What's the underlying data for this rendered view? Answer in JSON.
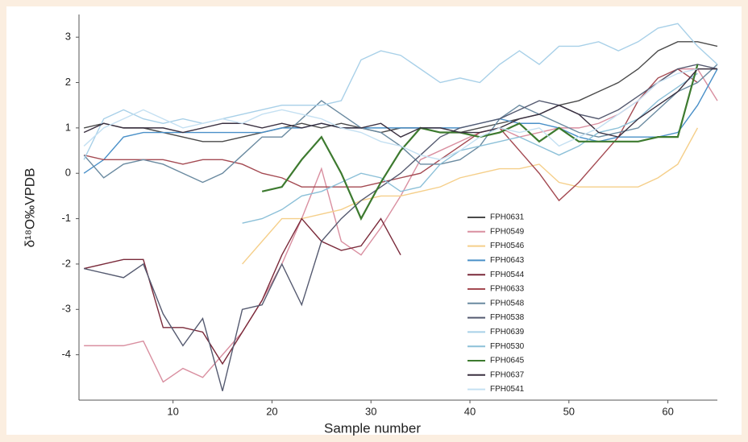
{
  "chart_data": {
    "type": "line",
    "x_label": "Sample number",
    "y_label": "δ¹⁸O‰VPDB",
    "xlim": [
      0.5,
      65
    ],
    "ylim": [
      -5,
      3.5
    ],
    "xticks": [
      10,
      20,
      30,
      40,
      50,
      60
    ],
    "yticks": [
      -4,
      -3,
      -2,
      -1,
      0,
      1,
      2,
      3
    ],
    "grid": false,
    "legend": "lower right",
    "x": [
      1,
      3,
      5,
      7,
      9,
      11,
      13,
      15,
      17,
      19,
      21,
      23,
      25,
      27,
      29,
      31,
      33,
      35,
      37,
      39,
      41,
      43,
      45,
      47,
      49,
      51,
      53,
      55,
      57,
      59,
      61,
      63,
      65
    ],
    "series": [
      {
        "name": "FPH0631",
        "color": "#4a4a4a",
        "values": [
          1.0,
          1.1,
          1.0,
          1.0,
          0.9,
          0.8,
          0.7,
          0.7,
          0.8,
          0.9,
          1.0,
          1.1,
          1.0,
          1.1,
          1.0,
          0.9,
          1.0,
          1.0,
          0.9,
          0.9,
          1.0,
          1.1,
          1.2,
          1.3,
          1.5,
          1.6,
          1.8,
          2.0,
          2.3,
          2.7,
          2.9,
          2.9,
          2.8
        ]
      },
      {
        "name": "FPH0549",
        "color": "#d98fa0",
        "values": [
          -3.8,
          -3.8,
          -3.8,
          -3.7,
          -4.6,
          -4.3,
          -4.5,
          -4.0,
          -3.5,
          -2.8,
          -2.0,
          -1.0,
          0.1,
          -1.5,
          -1.8,
          -1.2,
          -0.5,
          0.3,
          0.5,
          0.7,
          0.9,
          1.0,
          0.8,
          0.9,
          1.0,
          1.0,
          1.1,
          1.3,
          1.6,
          2.0,
          2.3,
          2.3,
          1.6
        ]
      },
      {
        "name": "FPH0546",
        "color": "#f5cf8a",
        "values": [
          null,
          null,
          null,
          null,
          null,
          null,
          null,
          null,
          -2.0,
          -1.5,
          -1.0,
          -1.0,
          -0.9,
          -0.8,
          -0.6,
          -0.5,
          -0.5,
          -0.4,
          -0.3,
          -0.1,
          0.0,
          0.1,
          0.1,
          0.2,
          -0.2,
          -0.3,
          -0.3,
          -0.3,
          -0.3,
          -0.1,
          0.2,
          1.0,
          null
        ]
      },
      {
        "name": "FPH0643",
        "color": "#4a90c8",
        "values": [
          0.0,
          0.3,
          0.8,
          0.9,
          0.9,
          0.9,
          0.9,
          0.9,
          0.9,
          0.9,
          1.0,
          1.0,
          1.1,
          1.0,
          1.0,
          1.0,
          1.0,
          1.0,
          1.0,
          1.0,
          1.1,
          1.2,
          1.1,
          1.1,
          1.0,
          0.8,
          0.7,
          0.8,
          0.8,
          0.8,
          0.9,
          1.5,
          2.3
        ]
      },
      {
        "name": "FPH0544",
        "color": "#7a2a3a",
        "values": [
          -2.1,
          -2.0,
          -1.9,
          -1.9,
          -3.4,
          -3.4,
          -3.5,
          -4.2,
          -3.5,
          -2.8,
          -1.8,
          -1.0,
          -1.5,
          -1.7,
          -1.6,
          -1.0,
          -1.8,
          null,
          null,
          null,
          null,
          null,
          null,
          null,
          null,
          null,
          null,
          null,
          null,
          null,
          null,
          null,
          null
        ]
      },
      {
        "name": "FPH0633",
        "color": "#a44a52",
        "values": [
          0.4,
          0.3,
          0.3,
          0.3,
          0.3,
          0.2,
          0.3,
          0.3,
          0.2,
          0.0,
          -0.1,
          -0.3,
          -0.3,
          -0.3,
          -0.3,
          -0.2,
          -0.1,
          0.0,
          0.3,
          0.6,
          0.9,
          1.0,
          0.5,
          0.0,
          -0.6,
          -0.2,
          0.3,
          0.8,
          1.6,
          2.1,
          2.3,
          2.0,
          null
        ]
      },
      {
        "name": "FPH0548",
        "color": "#6a8aa0",
        "values": [
          0.4,
          -0.1,
          0.2,
          0.3,
          0.2,
          0.0,
          -0.2,
          0.0,
          0.4,
          0.8,
          0.8,
          1.2,
          1.6,
          1.3,
          1.0,
          0.9,
          0.6,
          0.2,
          0.2,
          0.3,
          0.6,
          1.2,
          1.5,
          1.3,
          1.1,
          0.9,
          0.8,
          0.9,
          1.0,
          1.4,
          1.8,
          2.0,
          2.4
        ]
      },
      {
        "name": "FPH0538",
        "color": "#555a70",
        "values": [
          -2.1,
          -2.2,
          -2.3,
          -2.0,
          -3.1,
          -3.8,
          -3.2,
          -4.8,
          -3.0,
          -2.9,
          -2.0,
          -2.9,
          -1.5,
          -1.0,
          -0.6,
          -0.3,
          0.0,
          0.4,
          0.8,
          1.0,
          1.1,
          1.2,
          1.4,
          1.6,
          1.5,
          1.3,
          1.2,
          1.4,
          1.7,
          2.0,
          2.3,
          2.4,
          2.3
        ]
      },
      {
        "name": "FPH0639",
        "color": "#a8d0e8",
        "values": [
          0.3,
          1.2,
          1.4,
          1.2,
          1.1,
          1.2,
          1.1,
          1.2,
          1.3,
          1.4,
          1.5,
          1.5,
          1.5,
          1.6,
          2.5,
          2.7,
          2.6,
          2.3,
          2.0,
          2.1,
          2.0,
          2.4,
          2.7,
          2.4,
          2.8,
          2.8,
          2.9,
          2.7,
          2.9,
          3.2,
          3.3,
          2.8,
          2.4
        ]
      },
      {
        "name": "FPH0530",
        "color": "#8cc0d8",
        "values": [
          null,
          null,
          null,
          null,
          null,
          null,
          null,
          null,
          -1.1,
          -1.0,
          -0.8,
          -0.5,
          -0.4,
          -0.2,
          0.0,
          -0.1,
          -0.4,
          -0.3,
          0.2,
          0.5,
          0.6,
          0.7,
          0.8,
          0.6,
          0.4,
          0.6,
          0.9,
          1.0,
          1.2,
          1.6,
          1.9,
          2.2,
          null
        ]
      },
      {
        "name": "FPH0645",
        "color": "#3d7a2f",
        "values": [
          null,
          null,
          null,
          null,
          null,
          null,
          null,
          null,
          null,
          -0.4,
          -0.3,
          0.3,
          0.8,
          0.0,
          -1.0,
          -0.2,
          0.5,
          1.0,
          0.9,
          0.9,
          0.8,
          0.9,
          1.1,
          0.7,
          1.0,
          0.7,
          0.7,
          0.7,
          0.7,
          0.8,
          0.8,
          2.4,
          null
        ]
      },
      {
        "name": "FPH0637",
        "color": "#3a3040",
        "values": [
          0.9,
          1.1,
          1.0,
          1.0,
          1.0,
          0.9,
          1.0,
          1.1,
          1.1,
          1.0,
          1.1,
          1.0,
          1.1,
          1.0,
          1.0,
          1.1,
          0.8,
          1.0,
          1.0,
          0.9,
          0.9,
          1.0,
          1.2,
          1.3,
          1.5,
          1.3,
          0.9,
          0.8,
          1.2,
          1.5,
          1.8,
          2.3,
          2.3
        ]
      },
      {
        "name": "FPH0541",
        "color": "#c4e0f2",
        "values": [
          0.6,
          1.0,
          1.2,
          1.4,
          1.2,
          1.0,
          1.1,
          1.2,
          1.1,
          1.3,
          1.4,
          1.3,
          1.2,
          1.0,
          0.9,
          0.7,
          0.6,
          0.4,
          0.3,
          0.5,
          0.8,
          1.0,
          0.9,
          1.0,
          0.6,
          0.8,
          1.0,
          1.3,
          1.6,
          2.0,
          2.2,
          2.3,
          null
        ]
      }
    ]
  }
}
